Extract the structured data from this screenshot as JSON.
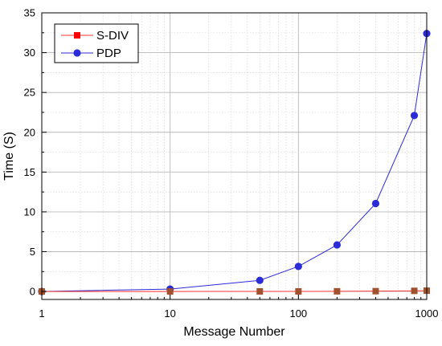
{
  "chart_data": {
    "type": "line",
    "xlabel": "Message Number",
    "ylabel": "Time (S)",
    "x_scale": "log",
    "xlim": [
      1,
      1000
    ],
    "ylim": [
      -1,
      35
    ],
    "x_ticks": [
      {
        "value": 1,
        "label": "1"
      },
      {
        "value": 10,
        "label": "10"
      },
      {
        "value": 100,
        "label": "100"
      },
      {
        "value": 1000,
        "label": "1000"
      }
    ],
    "y_ticks": [
      {
        "value": 0,
        "label": "0"
      },
      {
        "value": 5,
        "label": "5"
      },
      {
        "value": 10,
        "label": "10"
      },
      {
        "value": 15,
        "label": "15"
      },
      {
        "value": 20,
        "label": "20"
      },
      {
        "value": 25,
        "label": "25"
      },
      {
        "value": 30,
        "label": "30"
      },
      {
        "value": 35,
        "label": "35"
      }
    ],
    "grid": true,
    "legend_position": "top-left",
    "series": [
      {
        "name": "S-DIV",
        "color": "#ff3333",
        "marker": "square",
        "x": [
          1,
          10,
          50,
          100,
          200,
          400,
          800,
          1000
        ],
        "y": [
          0.0,
          0.0,
          0.01,
          0.01,
          0.02,
          0.04,
          0.08,
          0.1
        ]
      },
      {
        "name": "PDP",
        "color": "#2b2bd8",
        "marker": "circle",
        "x": [
          1,
          10,
          50,
          100,
          200,
          400,
          800,
          1000
        ],
        "y": [
          0.0,
          0.3,
          1.4,
          3.15,
          5.85,
          11.05,
          22.1,
          32.4
        ]
      }
    ]
  }
}
